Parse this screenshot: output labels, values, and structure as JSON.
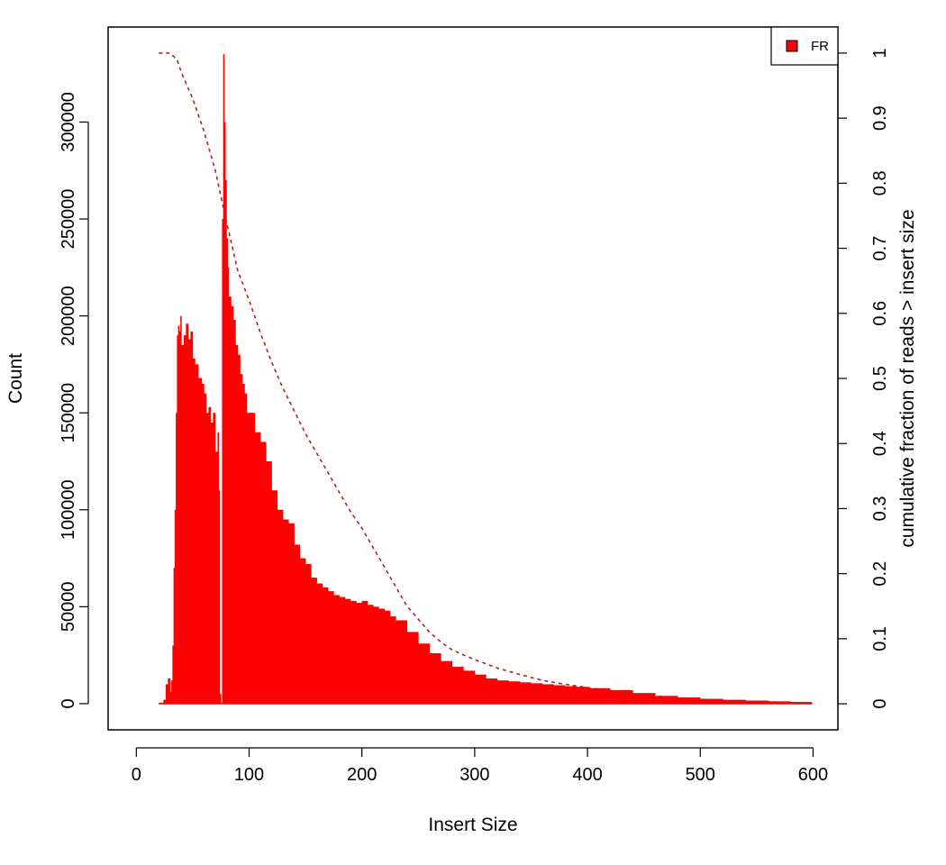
{
  "chart_data": {
    "type": "bar",
    "xlabel": "Insert Size",
    "ylabel": "Count",
    "y2label": "cumulative fraction of reads > insert size",
    "xlim": [
      -25,
      622
    ],
    "ylim": [
      -13500,
      349000
    ],
    "y2lim": [
      -0.04,
      1.04
    ],
    "x_ticks": [
      0,
      100,
      200,
      300,
      400,
      500,
      600
    ],
    "y_ticks": [
      0,
      50000,
      100000,
      150000,
      200000,
      250000,
      300000
    ],
    "y2_ticks": [
      0,
      0.1,
      0.2,
      0.3,
      0.4,
      0.5,
      0.6,
      0.7,
      0.8,
      0.9,
      1
    ],
    "y2_tick_labels": [
      "0",
      "0.1",
      "0.2",
      "0.3",
      "0.4",
      "0.5",
      "0.6",
      "0.7",
      "0.8",
      "0.9",
      "1"
    ],
    "legend": {
      "position": "top-right",
      "entries": [
        {
          "label": "FR",
          "color": "#ff0000"
        }
      ]
    },
    "colors": {
      "bars": "#ff0000",
      "cumulative": "#b22222"
    },
    "series": [
      {
        "name": "FR",
        "kind": "histogram",
        "x": [
          20,
          24,
          26,
          28,
          30,
          31,
          32,
          33,
          34,
          35,
          36,
          37,
          38,
          39,
          40,
          42,
          44,
          46,
          48,
          50,
          52,
          55,
          58,
          60,
          62,
          64,
          66,
          68,
          70,
          72,
          73,
          74,
          75,
          76,
          77,
          78,
          79,
          80,
          81,
          82,
          84,
          86,
          88,
          90,
          92,
          94,
          96,
          98,
          100,
          105,
          110,
          115,
          120,
          125,
          130,
          135,
          140,
          145,
          150,
          155,
          160,
          165,
          170,
          175,
          180,
          185,
          190,
          195,
          200,
          205,
          210,
          215,
          220,
          225,
          230,
          240,
          250,
          260,
          270,
          280,
          290,
          300,
          310,
          320,
          330,
          340,
          350,
          360,
          370,
          380,
          390,
          400,
          420,
          440,
          460,
          480,
          500,
          520,
          540,
          560,
          580,
          598
        ],
        "values": [
          500,
          2000,
          10000,
          13000,
          6000,
          12000,
          30000,
          70000,
          100000,
          150000,
          190000,
          195000,
          192000,
          200000,
          185000,
          190000,
          196000,
          188000,
          192000,
          178000,
          175000,
          168000,
          165000,
          160000,
          150000,
          153000,
          145000,
          150000,
          130000,
          140000,
          110000,
          5000,
          0,
          250000,
          335000,
          300000,
          270000,
          240000,
          225000,
          210000,
          205000,
          198000,
          185000,
          180000,
          170000,
          165000,
          160000,
          150000,
          150000,
          140000,
          135000,
          125000,
          110000,
          100000,
          95000,
          93000,
          82000,
          75000,
          72000,
          65000,
          62000,
          60000,
          58000,
          56000,
          55000,
          54000,
          53000,
          52000,
          53000,
          51000,
          50000,
          49000,
          48000,
          45000,
          43000,
          37000,
          31000,
          26000,
          22000,
          19000,
          17000,
          15000,
          13000,
          12000,
          11500,
          11000,
          10500,
          10000,
          9500,
          9000,
          8700,
          8000,
          7000,
          5500,
          4000,
          3200,
          2500,
          2000,
          1600,
          1200,
          900,
          800
        ]
      },
      {
        "name": "",
        "kind": "cumulative",
        "x": [
          20,
          30,
          36,
          40,
          50,
          60,
          70,
          80,
          90,
          100,
          110,
          120,
          130,
          140,
          150,
          160,
          170,
          180,
          190,
          200,
          210,
          220,
          230,
          240,
          250,
          260,
          270,
          280,
          290,
          300,
          320,
          340,
          360,
          380,
          400,
          420,
          440,
          460,
          480,
          500,
          520,
          540,
          560,
          580,
          598
        ],
        "values": [
          1.0,
          1.0,
          0.99,
          0.97,
          0.93,
          0.88,
          0.82,
          0.74,
          0.665,
          0.62,
          0.57,
          0.525,
          0.485,
          0.45,
          0.415,
          0.385,
          0.355,
          0.325,
          0.295,
          0.27,
          0.24,
          0.21,
          0.18,
          0.15,
          0.13,
          0.11,
          0.095,
          0.083,
          0.075,
          0.068,
          0.055,
          0.045,
          0.036,
          0.03,
          0.025,
          0.02,
          0.016,
          0.012,
          0.009,
          0.007,
          0.005,
          0.004,
          0.003,
          0.002,
          0.001
        ]
      }
    ]
  }
}
